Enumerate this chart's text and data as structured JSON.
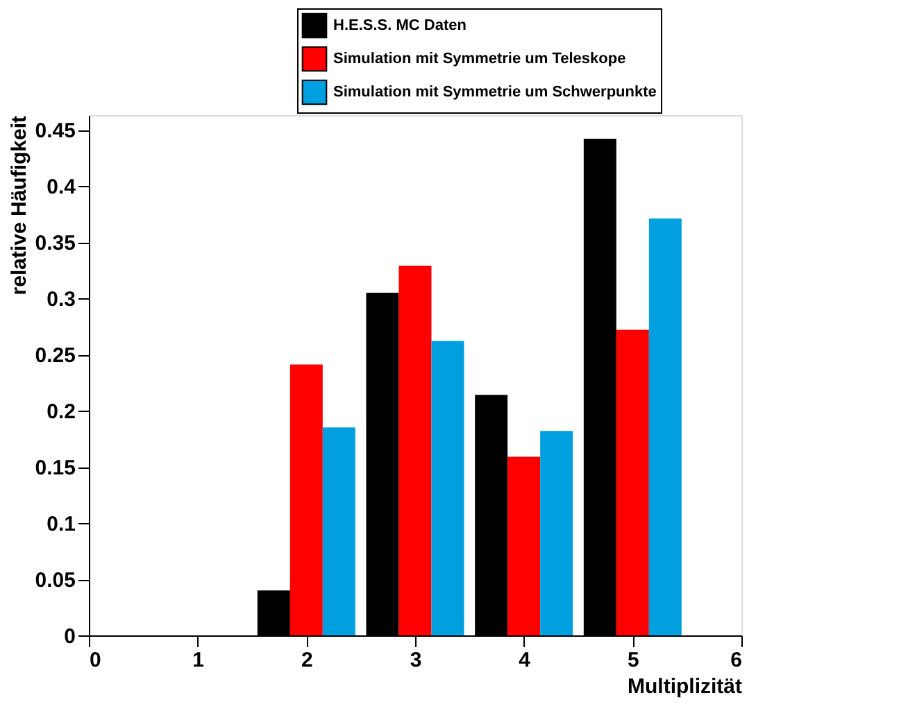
{
  "chart_data": {
    "type": "bar",
    "xlabel": "Multiplizität",
    "ylabel": "relative Häufigkeit",
    "x": [
      0,
      1,
      2,
      3,
      4,
      5
    ],
    "series": [
      {
        "name": "H.E.S.S. MC Daten",
        "color": "#000000",
        "values": [
          0,
          0,
          0.04,
          0.305,
          0.214,
          0.442
        ]
      },
      {
        "name": "Simulation mit Symmetrie um Teleskope",
        "color": "#ff0000",
        "values": [
          0,
          0,
          0.241,
          0.329,
          0.159,
          0.272
        ]
      },
      {
        "name": "Simulation mit Symmetrie um Schwerpunkte",
        "color": "#009fe0",
        "values": [
          0,
          0,
          0.185,
          0.262,
          0.182,
          0.371
        ]
      }
    ],
    "xlim": [
      0,
      6
    ],
    "xticks": [
      0,
      1,
      2,
      3,
      4,
      5,
      6
    ],
    "ylim": [
      0,
      0.463
    ],
    "yticks": [
      0,
      0.05,
      0.1,
      0.15,
      0.2,
      0.25,
      0.3,
      0.35,
      0.4,
      0.45
    ],
    "grid": false,
    "legend": "top right"
  }
}
